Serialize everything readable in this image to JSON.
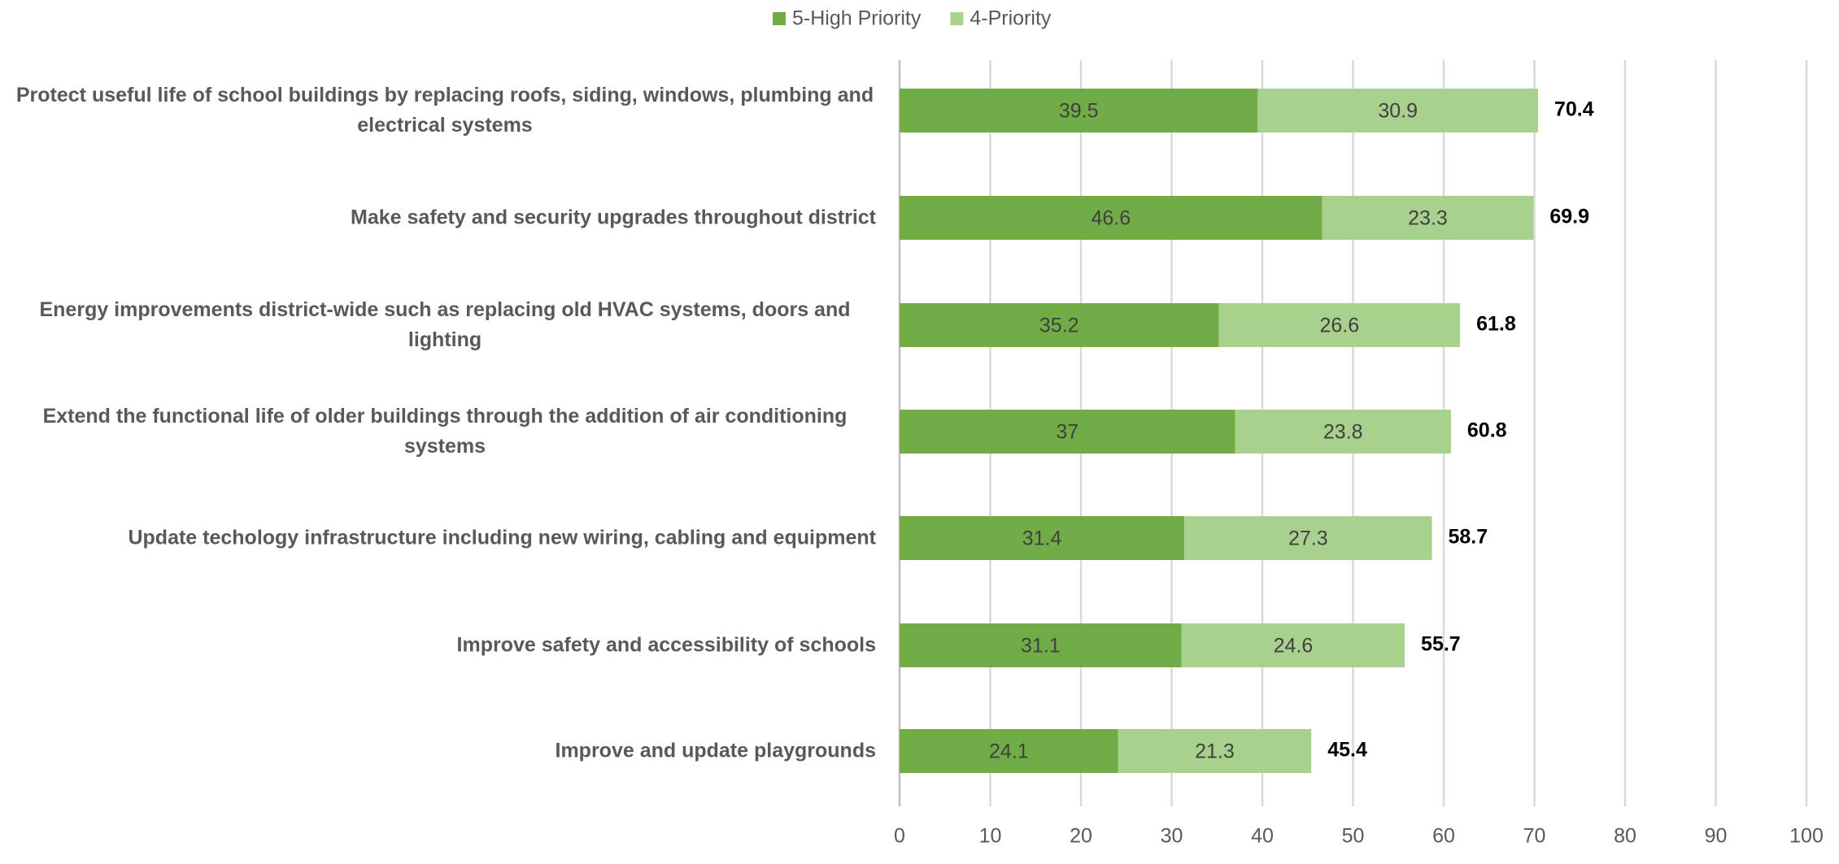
{
  "chart_data": {
    "type": "stacked-bar-horizontal",
    "categories": [
      "Protect useful life of school buildings by replacing roofs, siding, windows, plumbing and electrical systems",
      "Make safety and security upgrades throughout district",
      "Energy improvements district-wide such as replacing old HVAC systems, doors and lighting",
      "Extend the functional life of older buildings through the addition of air conditioning systems",
      "Update techology infrastructure including new wiring, cabling and equipment",
      "Improve safety and accessibility of schools",
      "Improve and update playgrounds"
    ],
    "series": [
      {
        "name": "5-High Priority",
        "color": "#70ad47",
        "values": [
          39.5,
          46.6,
          35.2,
          37,
          31.4,
          31.1,
          24.1
        ]
      },
      {
        "name": "4-Priority",
        "color": "#a9d18e",
        "values": [
          30.9,
          23.3,
          26.6,
          23.8,
          27.3,
          24.6,
          21.3
        ]
      }
    ],
    "totals": [
      70.4,
      69.9,
      61.8,
      60.8,
      58.7,
      55.7,
      45.4
    ],
    "xlim": [
      0,
      100
    ],
    "xticks": [
      0,
      10,
      20,
      30,
      40,
      50,
      60,
      70,
      80,
      90,
      100
    ],
    "grid": true,
    "legend": "top"
  }
}
